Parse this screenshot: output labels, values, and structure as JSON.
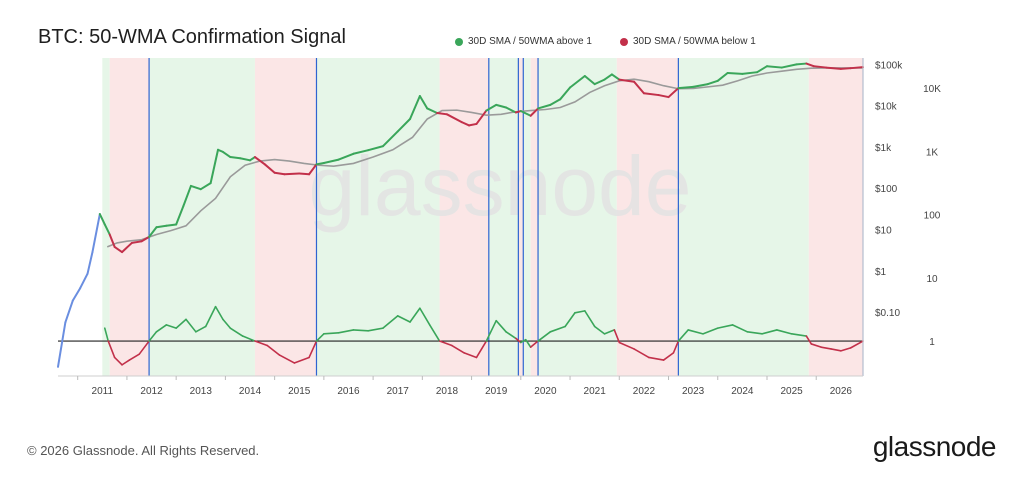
{
  "header": {
    "title": "BTC: 50-WMA Confirmation Signal"
  },
  "colors": {
    "above": "#3aa65a",
    "below": "#c2304a",
    "wma": "#9a9a9a",
    "ratio_above": "#3aa65a",
    "ratio_below": "#c2304a",
    "bg_above": "#e6f6e8",
    "bg_below": "#fbe6e6",
    "divider": "#2e64d1",
    "ref_line": "#222222",
    "early": "#6a8ee0"
  },
  "footer": {
    "copyright": "© 2026 Glassnode. All Rights Reserved.",
    "brand": "glassnode",
    "watermark": "glassnode"
  },
  "chart_data": {
    "type": "line",
    "title": "BTC: 50-WMA Confirmation Signal",
    "legend": [
      {
        "name": "30D SMA / 50WMA above 1",
        "color": "#3aa65a"
      },
      {
        "name": "30D SMA / 50WMA below 1",
        "color": "#c2304a"
      }
    ],
    "legend_placement": "top-center",
    "x_ticks": [
      "2011",
      "2012",
      "2013",
      "2014",
      "2015",
      "2016",
      "2017",
      "2018",
      "2019",
      "2020",
      "2021",
      "2022",
      "2023",
      "2024",
      "2025",
      "2026"
    ],
    "x_range": [
      2010.6,
      2026.95
    ],
    "price_axis": {
      "scale": "log",
      "ticks": [
        "$0.10",
        "$1",
        "$10",
        "$100",
        "$1k",
        "$10k",
        "$100k"
      ],
      "tick_values": [
        0.1,
        1,
        10,
        100,
        1000,
        10000,
        100000
      ],
      "range": [
        0.003,
        150000
      ]
    },
    "ratio_axis": {
      "scale": "log",
      "ticks": [
        "1",
        "10",
        "100",
        "1K",
        "10K"
      ],
      "tick_values": [
        1,
        10,
        100,
        1000,
        10000
      ],
      "range": [
        0.28,
        30000
      ]
    },
    "divider_dates": [
      2012.45,
      2015.85,
      2019.35,
      2019.95,
      2020.05,
      2020.35,
      2023.2,
      2026.95
    ],
    "regimes": [
      {
        "start": 2011.5,
        "end": 2011.65,
        "state": "above"
      },
      {
        "start": 2011.65,
        "end": 2012.45,
        "state": "below"
      },
      {
        "start": 2012.45,
        "end": 2014.6,
        "state": "above"
      },
      {
        "start": 2014.6,
        "end": 2015.85,
        "state": "below"
      },
      {
        "start": 2015.85,
        "end": 2018.35,
        "state": "above"
      },
      {
        "start": 2018.35,
        "end": 2019.35,
        "state": "below"
      },
      {
        "start": 2019.35,
        "end": 2019.95,
        "state": "above"
      },
      {
        "start": 2019.95,
        "end": 2020.05,
        "state": "below"
      },
      {
        "start": 2020.05,
        "end": 2020.2,
        "state": "above"
      },
      {
        "start": 2020.2,
        "end": 2020.35,
        "state": "below"
      },
      {
        "start": 2020.35,
        "end": 2021.95,
        "state": "above"
      },
      {
        "start": 2021.95,
        "end": 2023.2,
        "state": "below"
      },
      {
        "start": 2023.2,
        "end": 2025.85,
        "state": "above"
      },
      {
        "start": 2025.85,
        "end": 2026.95,
        "state": "below"
      }
    ],
    "series": [
      {
        "name": "Price",
        "x": [
          2010.6,
          2010.75,
          2010.9,
          2011.05,
          2011.2,
          2011.3,
          2011.45,
          2011.55,
          2011.65,
          2011.75,
          2011.9,
          2012.1,
          2012.3,
          2012.45,
          2012.6,
          2012.8,
          2013.0,
          2013.15,
          2013.3,
          2013.5,
          2013.7,
          2013.85,
          2013.95,
          2014.1,
          2014.3,
          2014.5,
          2014.6,
          2014.8,
          2015.0,
          2015.2,
          2015.5,
          2015.7,
          2015.85,
          2016.0,
          2016.3,
          2016.6,
          2016.9,
          2017.2,
          2017.5,
          2017.75,
          2017.95,
          2018.1,
          2018.3,
          2018.5,
          2018.8,
          2018.95,
          2019.1,
          2019.3,
          2019.5,
          2019.7,
          2019.9,
          2020.0,
          2020.2,
          2020.35,
          2020.6,
          2020.8,
          2021.0,
          2021.3,
          2021.5,
          2021.7,
          2021.85,
          2022.0,
          2022.3,
          2022.5,
          2022.8,
          2023.0,
          2023.2,
          2023.5,
          2023.8,
          2024.0,
          2024.2,
          2024.5,
          2024.8,
          2025.0,
          2025.3,
          2025.6,
          2025.8,
          2025.95,
          2026.2,
          2026.5,
          2026.7,
          2026.95
        ],
        "y": [
          0.005,
          0.06,
          0.2,
          0.4,
          0.9,
          3,
          25,
          14,
          8,
          4,
          3,
          5,
          5.5,
          7,
          12,
          13,
          14,
          40,
          120,
          100,
          140,
          900,
          800,
          600,
          560,
          500,
          600,
          400,
          250,
          230,
          240,
          230,
          400,
          430,
          520,
          720,
          880,
          1100,
          2500,
          5000,
          18000,
          9000,
          7000,
          6500,
          4200,
          3500,
          3800,
          8000,
          11000,
          9500,
          7200,
          7800,
          6000,
          9000,
          11000,
          15000,
          29000,
          55000,
          35000,
          45000,
          60000,
          45000,
          40000,
          21000,
          19000,
          17000,
          28000,
          30000,
          35000,
          42000,
          65000,
          62000,
          68000,
          95000,
          88000,
          105000,
          110000,
          95000,
          88000,
          82000,
          85000,
          90000
        ]
      },
      {
        "name": "50WMA",
        "x": [
          2011.6,
          2011.8,
          2012.0,
          2012.3,
          2012.6,
          2012.9,
          2013.2,
          2013.5,
          2013.8,
          2014.1,
          2014.4,
          2014.7,
          2015.0,
          2015.3,
          2015.6,
          2015.9,
          2016.2,
          2016.6,
          2017.0,
          2017.4,
          2017.8,
          2018.1,
          2018.4,
          2018.7,
          2019.0,
          2019.3,
          2019.6,
          2019.9,
          2020.2,
          2020.5,
          2020.8,
          2021.1,
          2021.4,
          2021.7,
          2022.0,
          2022.3,
          2022.6,
          2022.9,
          2023.2,
          2023.5,
          2023.8,
          2024.1,
          2024.4,
          2024.7,
          2025.0,
          2025.3,
          2025.6,
          2025.9,
          2026.2,
          2026.5,
          2026.95
        ],
        "y": [
          4,
          5,
          5.5,
          6,
          8,
          10,
          13,
          30,
          60,
          200,
          380,
          480,
          520,
          480,
          420,
          380,
          360,
          420,
          600,
          900,
          1800,
          5000,
          8000,
          8200,
          7200,
          6200,
          6500,
          7500,
          8000,
          8500,
          9500,
          13000,
          22000,
          32000,
          42000,
          46000,
          40000,
          32000,
          27000,
          27500,
          30000,
          33000,
          42000,
          55000,
          65000,
          72000,
          80000,
          85000,
          86000,
          86000,
          86000
        ]
      },
      {
        "name": "30D SMA / 50WMA",
        "x": [
          2011.55,
          2011.62,
          2011.75,
          2011.9,
          2012.05,
          2012.25,
          2012.45,
          2012.6,
          2012.8,
          2013.0,
          2013.2,
          2013.4,
          2013.6,
          2013.8,
          2013.95,
          2014.1,
          2014.35,
          2014.6,
          2014.85,
          2015.1,
          2015.4,
          2015.7,
          2015.85,
          2016.0,
          2016.3,
          2016.6,
          2016.9,
          2017.2,
          2017.5,
          2017.75,
          2017.95,
          2018.15,
          2018.35,
          2018.6,
          2018.85,
          2019.1,
          2019.3,
          2019.5,
          2019.7,
          2019.9,
          2020.0,
          2020.1,
          2020.2,
          2020.35,
          2020.6,
          2020.9,
          2021.1,
          2021.3,
          2021.5,
          2021.7,
          2021.9,
          2022.0,
          2022.3,
          2022.6,
          2022.9,
          2023.1,
          2023.2,
          2023.4,
          2023.7,
          2024.0,
          2024.3,
          2024.6,
          2024.9,
          2025.2,
          2025.5,
          2025.8,
          2025.9,
          2026.1,
          2026.3,
          2026.5,
          2026.7,
          2026.95
        ],
        "y": [
          1.6,
          1.0,
          0.55,
          0.42,
          0.5,
          0.62,
          1.0,
          1.4,
          1.8,
          1.6,
          2.2,
          1.4,
          1.7,
          3.5,
          2.2,
          1.6,
          1.2,
          1.0,
          0.85,
          0.6,
          0.45,
          0.55,
          1.0,
          1.3,
          1.35,
          1.5,
          1.45,
          1.6,
          2.5,
          2.0,
          3.3,
          1.8,
          1.0,
          0.85,
          0.65,
          0.55,
          1.0,
          2.1,
          1.4,
          1.1,
          0.95,
          1.05,
          0.8,
          1.0,
          1.4,
          1.7,
          2.8,
          3.0,
          1.7,
          1.3,
          1.5,
          0.95,
          0.75,
          0.55,
          0.5,
          0.65,
          1.0,
          1.5,
          1.3,
          1.6,
          1.8,
          1.4,
          1.3,
          1.5,
          1.3,
          1.2,
          0.9,
          0.8,
          0.75,
          0.7,
          0.78,
          1.0
        ]
      }
    ]
  }
}
